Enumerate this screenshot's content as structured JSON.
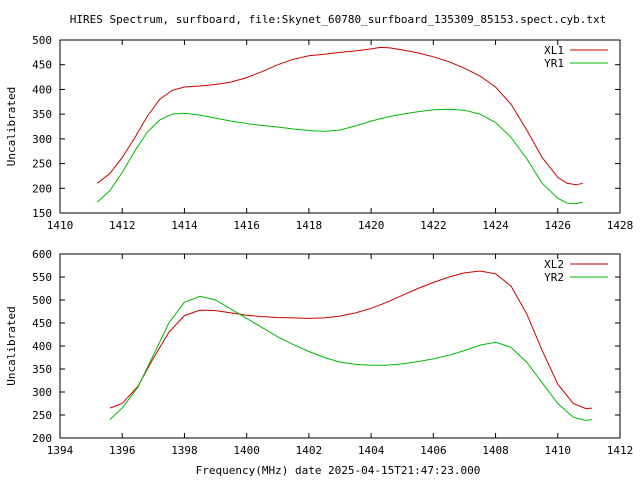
{
  "title": "HIRES Spectrum, surfboard, file:Skynet_60780_surfboard_135309_85153.spect.cyb.txt",
  "xlabel": "Frequency(MHz) date 2025-04-15T21:47:23.000",
  "colors": {
    "red": "#cc0000",
    "green": "#00bb00"
  },
  "chart_data": [
    {
      "type": "line",
      "ylabel": "Uncalibrated",
      "xlim": [
        1410,
        1428
      ],
      "ylim": [
        150,
        500
      ],
      "xticks": [
        1410,
        1412,
        1414,
        1416,
        1418,
        1420,
        1422,
        1424,
        1426,
        1428
      ],
      "yticks": [
        150,
        200,
        250,
        300,
        350,
        400,
        450,
        500
      ],
      "grid": false,
      "legend_position": "top-right",
      "series": [
        {
          "name": "XL1",
          "color": "#cc0000",
          "x": [
            1411.2,
            1411.6,
            1412.0,
            1412.4,
            1412.8,
            1413.2,
            1413.6,
            1414.0,
            1414.5,
            1415.0,
            1415.5,
            1416.0,
            1416.5,
            1417.0,
            1417.5,
            1418.0,
            1418.5,
            1419.0,
            1419.5,
            1420.0,
            1420.3,
            1420.6,
            1421.0,
            1421.5,
            1422.0,
            1422.5,
            1423.0,
            1423.5,
            1424.0,
            1424.5,
            1425.0,
            1425.5,
            1426.0,
            1426.3,
            1426.6,
            1426.8
          ],
          "y": [
            210,
            230,
            262,
            302,
            345,
            380,
            398,
            405,
            407,
            410,
            415,
            424,
            436,
            450,
            461,
            468,
            471,
            475,
            478,
            482,
            485,
            484,
            480,
            474,
            466,
            456,
            443,
            427,
            405,
            370,
            318,
            262,
            222,
            210,
            207,
            210
          ]
        },
        {
          "name": "YR1",
          "color": "#00bb00",
          "x": [
            1411.2,
            1411.6,
            1412.0,
            1412.4,
            1412.8,
            1413.2,
            1413.6,
            1414.0,
            1414.5,
            1415.0,
            1415.5,
            1416.0,
            1416.5,
            1417.0,
            1417.5,
            1418.0,
            1418.5,
            1419.0,
            1419.5,
            1420.0,
            1420.5,
            1421.0,
            1421.5,
            1422.0,
            1422.5,
            1423.0,
            1423.5,
            1424.0,
            1424.5,
            1425.0,
            1425.5,
            1426.0,
            1426.3,
            1426.6,
            1426.8
          ],
          "y": [
            172,
            195,
            232,
            275,
            313,
            338,
            350,
            352,
            348,
            342,
            336,
            331,
            327,
            324,
            320,
            317,
            315,
            318,
            326,
            336,
            344,
            350,
            355,
            359,
            360,
            358,
            350,
            333,
            303,
            260,
            210,
            180,
            170,
            169,
            172
          ]
        }
      ]
    },
    {
      "type": "line",
      "ylabel": "Uncalibrated",
      "xlim": [
        1394,
        1412
      ],
      "ylim": [
        200,
        600
      ],
      "xticks": [
        1394,
        1396,
        1398,
        1400,
        1402,
        1404,
        1406,
        1408,
        1410,
        1412
      ],
      "yticks": [
        200,
        250,
        300,
        350,
        400,
        450,
        500,
        550,
        600
      ],
      "grid": false,
      "legend_position": "top-right",
      "series": [
        {
          "name": "XL2",
          "color": "#cc0000",
          "x": [
            1395.6,
            1396.0,
            1396.5,
            1397.0,
            1397.5,
            1398.0,
            1398.5,
            1399.0,
            1399.5,
            1400.0,
            1400.5,
            1401.0,
            1401.5,
            1402.0,
            1402.5,
            1403.0,
            1403.5,
            1404.0,
            1404.5,
            1405.0,
            1405.5,
            1406.0,
            1406.5,
            1407.0,
            1407.5,
            1408.0,
            1408.5,
            1409.0,
            1409.5,
            1410.0,
            1410.5,
            1410.9,
            1411.1
          ],
          "y": [
            265,
            275,
            312,
            373,
            430,
            466,
            478,
            477,
            472,
            467,
            464,
            462,
            461,
            460,
            461,
            465,
            472,
            482,
            495,
            510,
            525,
            538,
            550,
            559,
            563,
            557,
            530,
            470,
            390,
            317,
            275,
            264,
            265
          ]
        },
        {
          "name": "YR2",
          "color": "#00bb00",
          "x": [
            1395.6,
            1396.0,
            1396.5,
            1397.0,
            1397.5,
            1398.0,
            1398.5,
            1399.0,
            1399.5,
            1400.0,
            1400.5,
            1401.0,
            1401.5,
            1402.0,
            1402.5,
            1403.0,
            1403.5,
            1404.0,
            1404.5,
            1405.0,
            1405.5,
            1406.0,
            1406.5,
            1407.0,
            1407.5,
            1408.0,
            1408.5,
            1409.0,
            1409.5,
            1410.0,
            1410.5,
            1410.9,
            1411.1
          ],
          "y": [
            240,
            265,
            310,
            380,
            450,
            495,
            508,
            500,
            480,
            460,
            440,
            420,
            403,
            388,
            375,
            365,
            360,
            358,
            358,
            361,
            366,
            372,
            380,
            390,
            402,
            408,
            397,
            365,
            320,
            275,
            245,
            238,
            240
          ]
        }
      ]
    }
  ]
}
